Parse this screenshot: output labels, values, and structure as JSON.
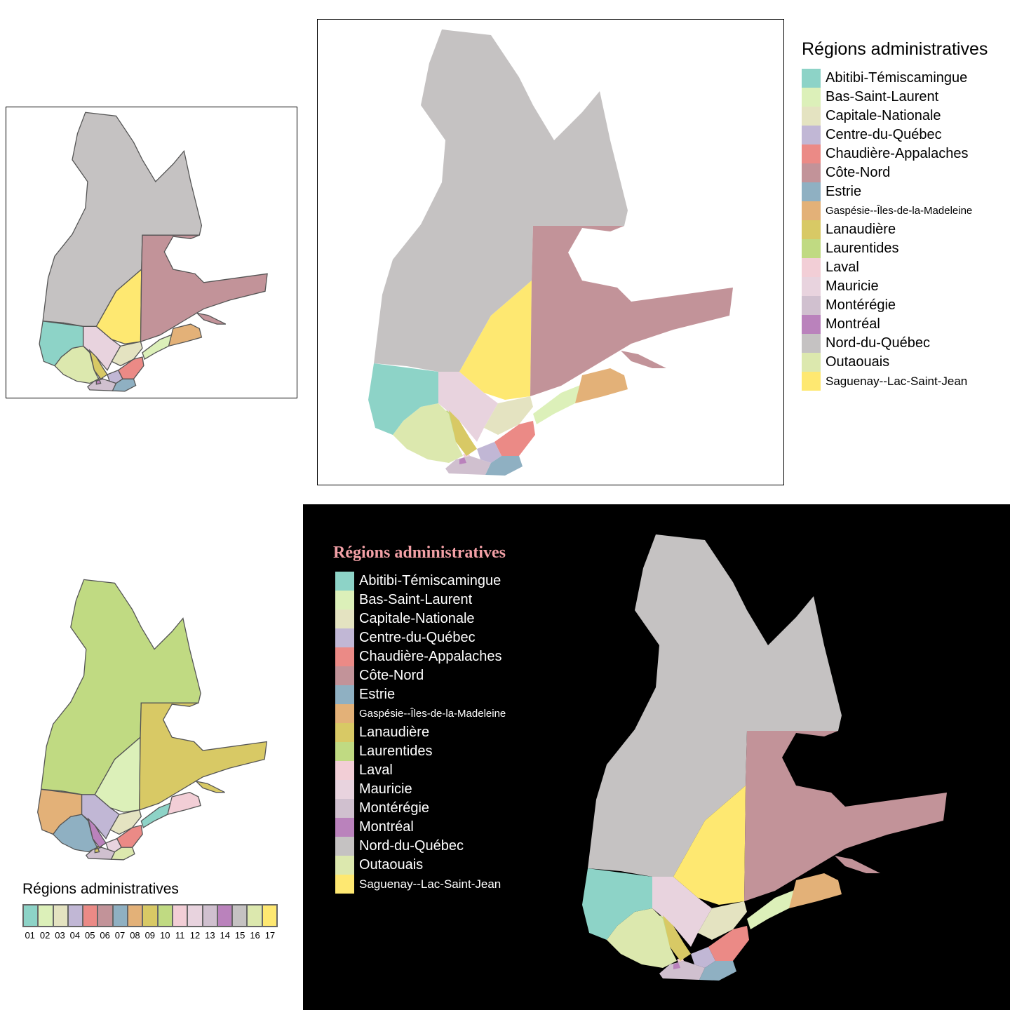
{
  "legend_title": "Régions administratives",
  "regions": [
    {
      "code": "01",
      "name": "Abitibi-Témiscamingue",
      "color": "#8DD3C7"
    },
    {
      "code": "02",
      "name": "Bas-Saint-Laurent",
      "color": "#DCF0B9"
    },
    {
      "code": "03",
      "name": "Capitale-Nationale",
      "color": "#E4E3C1"
    },
    {
      "code": "04",
      "name": "Centre-du-Québec",
      "color": "#C1B7D5"
    },
    {
      "code": "05",
      "name": "Chaudière-Appalaches",
      "color": "#EB8A86"
    },
    {
      "code": "06",
      "name": "Côte-Nord",
      "color": "#C29399"
    },
    {
      "code": "07",
      "name": "Estrie",
      "color": "#8FB0C2"
    },
    {
      "code": "08",
      "name": "Gaspésie--Îles-de-la-Madeleine",
      "color": "#E3B178"
    },
    {
      "code": "09",
      "name": "Lanaudière",
      "color": "#D8C965"
    },
    {
      "code": "10",
      "name": "Laurentides",
      "color": "#C0DA82"
    },
    {
      "code": "11",
      "name": "Laval",
      "color": "#F2CED6"
    },
    {
      "code": "12",
      "name": "Mauricie",
      "color": "#E8D3DE"
    },
    {
      "code": "13",
      "name": "Montérégie",
      "color": "#D0C0CF"
    },
    {
      "code": "14",
      "name": "Montréal",
      "color": "#BA82BC"
    },
    {
      "code": "15",
      "name": "Nord-du-Québec",
      "color": "#C5C2C2"
    },
    {
      "code": "16",
      "name": "Outaouais",
      "color": "#DCE8AE"
    },
    {
      "code": "17",
      "name": "Saguenay--Lac-Saint-Jean",
      "color": "#FEE871"
    }
  ],
  "panels": {
    "top_left": {
      "border": "#555555",
      "fill": "by-region"
    },
    "top_center": {
      "legend": "right"
    },
    "bottom_left": {
      "legend": "bottom",
      "legend_type": "code-bar"
    },
    "bottom_right": {
      "background": "#000000",
      "title_color": "#F2A0A6",
      "label_color": "#FFFFFF",
      "legend": "left"
    }
  }
}
